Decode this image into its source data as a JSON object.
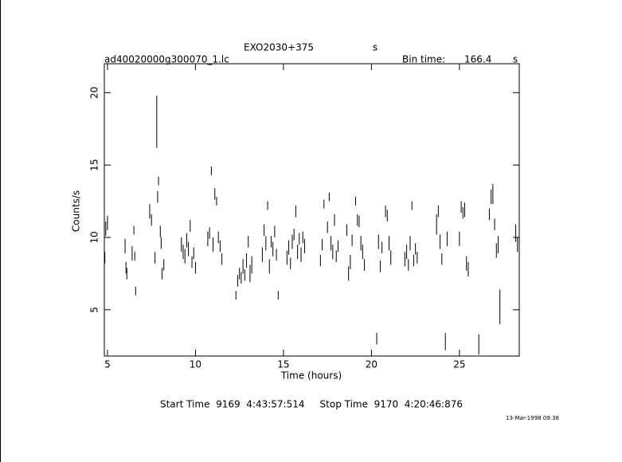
{
  "chart_data": {
    "type": "errorbar",
    "title": "EXO2030+375",
    "title_unit": "s",
    "file_name": "ad40020000g300070_1.lc",
    "bin_time_label": "Bin time:",
    "bin_time": 166.4,
    "bin_time_unit": "s",
    "x_label": "Time (hours)",
    "y_label": "Counts/s",
    "start_stop": "Start Time  9169  4:43:57:514     Stop Time  9170  4:20:46:876",
    "date": "13-Mar-1998 09:38",
    "xlim": [
      4.82,
      28.4
    ],
    "ylim": [
      1.8,
      22
    ],
    "xticks": [
      5,
      10,
      15,
      20,
      25
    ],
    "yticks": [
      5,
      10,
      15,
      20
    ],
    "series": [
      {
        "color": "#000000",
        "x": [
          4.85,
          4.9,
          5.0,
          6.0,
          6.05,
          6.1,
          6.4,
          6.5,
          6.55,
          6.6,
          7.4,
          7.5,
          7.7,
          7.8,
          7.85,
          7.9,
          8.0,
          8.05,
          8.1,
          8.2,
          9.2,
          9.3,
          9.4,
          9.5,
          9.6,
          9.7,
          9.8,
          9.9,
          10.0,
          10.7,
          10.8,
          10.9,
          11.0,
          11.1,
          11.2,
          11.3,
          11.4,
          11.5,
          12.3,
          12.4,
          12.5,
          12.6,
          12.7,
          12.8,
          12.9,
          13.0,
          13.1,
          13.2,
          13.8,
          13.9,
          14.0,
          14.1,
          14.2,
          14.3,
          14.4,
          14.5,
          14.6,
          14.7,
          15.2,
          15.3,
          15.4,
          15.5,
          15.6,
          15.7,
          15.8,
          15.9,
          16.0,
          16.1,
          16.2,
          17.1,
          17.2,
          17.3,
          17.5,
          17.6,
          17.7,
          17.8,
          17.9,
          18.0,
          18.1,
          18.6,
          18.7,
          18.8,
          18.9,
          19.1,
          19.2,
          19.3,
          19.4,
          19.5,
          19.6,
          20.3,
          20.4,
          20.5,
          20.6,
          20.8,
          20.9,
          21.0,
          21.1,
          21.9,
          22.0,
          22.1,
          22.2,
          22.3,
          22.4,
          22.5,
          22.6,
          23.7,
          23.8,
          23.9,
          24.0,
          24.2,
          24.3,
          25.0,
          25.1,
          25.2,
          25.3,
          25.4,
          25.5,
          26.1,
          26.7,
          26.8,
          26.9,
          27.0,
          27.1,
          27.2,
          27.3,
          28.2,
          28.3
        ],
        "values": [
          8.6,
          10.6,
          11.0,
          9.4,
          7.9,
          7.5,
          8.9,
          10.5,
          8.7,
          6.3,
          11.8,
          11.2,
          8.6,
          18.0,
          12.8,
          13.9,
          10.4,
          9.6,
          7.5,
          8.1,
          9.5,
          9.0,
          8.7,
          9.8,
          9.2,
          10.8,
          8.3,
          8.9,
          7.9,
          9.9,
          10.3,
          14.6,
          9.5,
          13.0,
          12.5,
          10.0,
          9.4,
          8.5,
          6.0,
          7.0,
          7.5,
          7.2,
          8.0,
          7.4,
          8.4,
          9.7,
          7.5,
          8.1,
          8.8,
          10.5,
          9.6,
          12.2,
          8.0,
          9.7,
          9.2,
          10.4,
          8.8,
          6.0,
          8.6,
          9.3,
          8.2,
          9.7,
          10.2,
          11.8,
          9.0,
          9.9,
          8.8,
          10.0,
          9.4,
          8.4,
          9.5,
          12.3,
          10.7,
          12.8,
          9.6,
          9.0,
          11.2,
          8.7,
          9.4,
          10.5,
          7.5,
          8.3,
          9.8,
          12.5,
          11.2,
          11.1,
          9.6,
          9.0,
          8.1,
          3.0,
          9.7,
          8.0,
          9.3,
          11.8,
          11.5,
          9.6,
          8.6,
          8.5,
          9.0,
          8.1,
          9.6,
          12.2,
          8.4,
          9.2,
          8.6,
          10.9,
          11.8,
          9.7,
          8.5,
          2.8,
          9.9,
          9.9,
          12.1,
          11.7,
          11.9,
          8.2,
          7.8,
          2.6,
          11.6,
          12.8,
          13.0,
          10.9,
          9.1,
          9.5,
          5.2,
          10.3,
          9.5
        ],
        "errors": [
          0.4,
          0.5,
          0.5,
          0.5,
          0.4,
          0.4,
          0.5,
          0.3,
          0.3,
          0.3,
          0.5,
          0.4,
          0.4,
          1.8,
          0.4,
          0.3,
          0.4,
          0.4,
          0.4,
          0.4,
          0.5,
          0.5,
          0.5,
          0.5,
          0.5,
          0.4,
          0.4,
          0.4,
          0.4,
          0.5,
          0.4,
          0.3,
          0.5,
          0.4,
          0.3,
          0.4,
          0.4,
          0.4,
          0.3,
          0.4,
          0.4,
          0.4,
          0.5,
          0.4,
          0.5,
          0.4,
          0.6,
          0.6,
          0.5,
          0.4,
          0.5,
          0.3,
          0.5,
          0.4,
          0.5,
          0.4,
          0.4,
          0.3,
          0.5,
          0.5,
          0.4,
          0.5,
          0.4,
          0.4,
          0.5,
          0.4,
          0.5,
          0.4,
          0.5,
          0.4,
          0.4,
          0.3,
          0.4,
          0.3,
          0.5,
          0.5,
          0.4,
          0.4,
          0.4,
          0.4,
          0.5,
          0.5,
          0.4,
          0.3,
          0.4,
          0.4,
          0.5,
          0.5,
          0.4,
          0.4,
          0.5,
          0.4,
          0.4,
          0.4,
          0.4,
          0.5,
          0.5,
          0.5,
          0.5,
          0.4,
          0.5,
          0.3,
          0.4,
          0.4,
          0.4,
          0.7,
          0.4,
          0.5,
          0.4,
          0.6,
          0.5,
          0.5,
          0.4,
          0.4,
          0.5,
          0.5,
          0.5,
          0.7,
          0.4,
          0.5,
          0.7,
          0.4,
          0.5,
          0.6,
          1.2,
          0.6,
          0.5
        ]
      }
    ]
  }
}
